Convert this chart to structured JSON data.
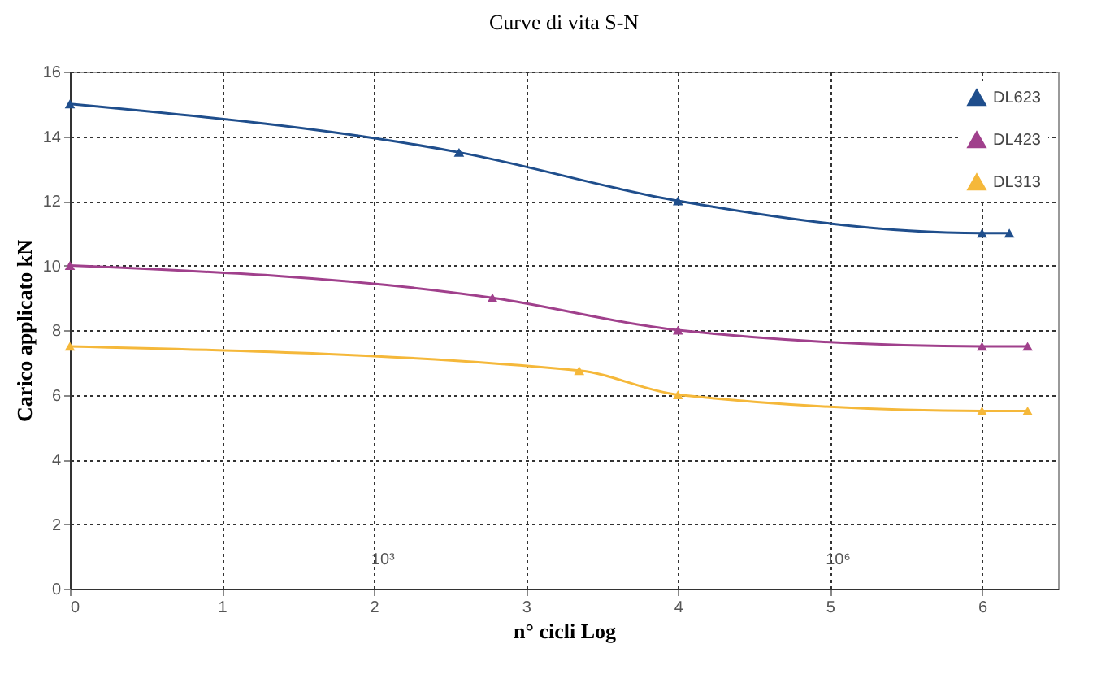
{
  "chart_data": {
    "type": "line",
    "title": "Curve di vita S-N",
    "xlabel": "n° cicli Log",
    "ylabel": "Carico applicato kN",
    "xlim": [
      0,
      6.5
    ],
    "xticks": [
      0,
      1,
      2,
      3,
      4,
      5,
      6
    ],
    "ylim": [
      0,
      16
    ],
    "yticks": [
      0,
      2,
      4,
      6,
      8,
      10,
      12,
      14,
      16
    ],
    "grid": true,
    "legend": "top right",
    "marker": "triangle",
    "line_style": "solid",
    "series": [
      {
        "name": "DL623",
        "color": "#1f4e8c",
        "x": [
          0,
          2.56,
          4,
          6,
          6.18
        ],
        "values": [
          15,
          13.5,
          12,
          11,
          11
        ]
      },
      {
        "name": "DL423",
        "color": "#a0408c",
        "x": [
          0,
          2.78,
          4,
          6,
          6.3
        ],
        "values": [
          10,
          9,
          8,
          7.5,
          7.5
        ]
      },
      {
        "name": "DL313",
        "color": "#f5b83a",
        "x": [
          0,
          3.35,
          4,
          6,
          6.3
        ],
        "values": [
          7.5,
          6.75,
          6,
          5.5,
          5.5
        ]
      }
    ],
    "annotations": [
      "10³",
      "10⁶"
    ]
  }
}
